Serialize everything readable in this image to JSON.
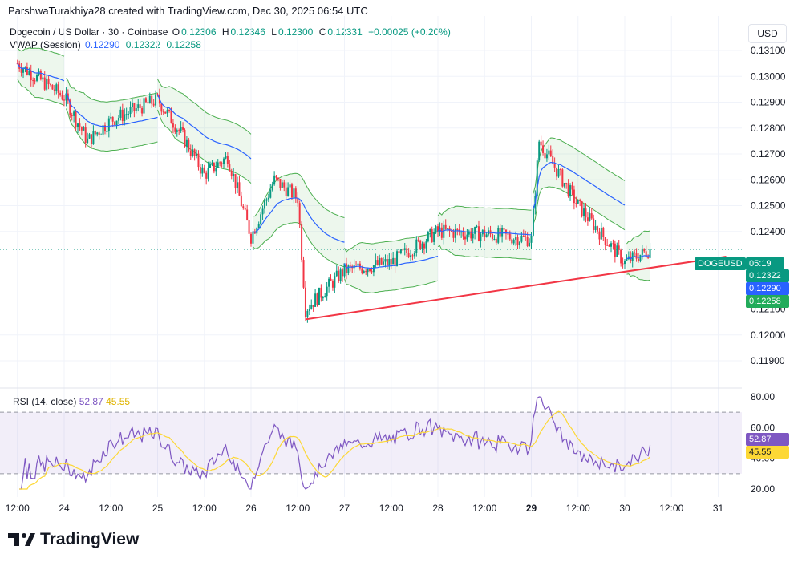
{
  "header": {
    "text": "ParshwaTurakhiya28 created with TradingView.com, Dec 30, 2025 06:54 UTC"
  },
  "symbol": {
    "title": "Dogecoin / US Dollar · 30 · Coinbase",
    "o_label": "O",
    "o": "0.12306",
    "h_label": "H",
    "h": "0.12346",
    "l_label": "L",
    "l": "0.12300",
    "c_label": "C",
    "c": "0.12331",
    "change": "+0.00025 (+0.20%)"
  },
  "vwap": {
    "label": "VWAP (Session)",
    "v1": "0.12290",
    "v2": "0.12322",
    "v3": "0.12258"
  },
  "currency": "USD",
  "price_tags": {
    "ticker": "DOGEUSD",
    "countdown": "05:19",
    "upper": "0.12322",
    "vwap": "0.12290",
    "lower": "0.12258"
  },
  "rsi": {
    "label": "RSI (14, close)",
    "value": "52.87",
    "ma": "45.55",
    "tag_value": "52.87",
    "tag_ma": "45.55"
  },
  "brand": "TradingView",
  "colors": {
    "up": "#089981",
    "down": "#f23645",
    "vwap": "#2962ff",
    "band": "#4caf50",
    "trendline": "#f23645",
    "rsi": "#7e57c2",
    "rsi_ma": "#fdd835"
  },
  "chart_data": [
    {
      "type": "candlestick",
      "title": "Dogecoin / US Dollar · 30 · Coinbase",
      "ylim": [
        0.1188,
        0.1313
      ],
      "yticks": [
        "0.13100",
        "0.13000",
        "0.12900",
        "0.12800",
        "0.12700",
        "0.12600",
        "0.12500",
        "0.12400",
        "0.12100",
        "0.12000",
        "0.11900"
      ],
      "xticks": [
        "12:00",
        "24",
        "12:00",
        "25",
        "12:00",
        "26",
        "12:00",
        "27",
        "12:00",
        "28",
        "12:00",
        "29",
        "12:00",
        "30",
        "12:00",
        "31"
      ],
      "price_approx": [
        {
          "x": "Dec 23 12:00",
          "y": 0.1305
        },
        {
          "x": "Dec 24 00:00",
          "y": 0.1292
        },
        {
          "x": "Dec 24 06:00",
          "y": 0.1275
        },
        {
          "x": "Dec 24 12:00",
          "y": 0.1283
        },
        {
          "x": "Dec 25 00:00",
          "y": 0.1291
        },
        {
          "x": "Dec 25 06:00",
          "y": 0.1278
        },
        {
          "x": "Dec 25 12:00",
          "y": 0.1262
        },
        {
          "x": "Dec 25 18:00",
          "y": 0.1269
        },
        {
          "x": "Dec 26 00:00",
          "y": 0.1238
        },
        {
          "x": "Dec 26 06:00",
          "y": 0.126
        },
        {
          "x": "Dec 26 12:00",
          "y": 0.1253
        },
        {
          "x": "Dec 26 14:00",
          "y": 0.121
        },
        {
          "x": "Dec 27 00:00",
          "y": 0.1225
        },
        {
          "x": "Dec 27 12:00",
          "y": 0.1228
        },
        {
          "x": "Dec 28 00:00",
          "y": 0.124
        },
        {
          "x": "Dec 28 12:00",
          "y": 0.1239
        },
        {
          "x": "Dec 29 00:00",
          "y": 0.1237
        },
        {
          "x": "Dec 29 02:00",
          "y": 0.1275
        },
        {
          "x": "Dec 29 12:00",
          "y": 0.125
        },
        {
          "x": "Dec 30 00:00",
          "y": 0.1228
        },
        {
          "x": "Dec 30 06:30",
          "y": 0.1233
        }
      ],
      "series": [
        {
          "name": "VWAP (Session)",
          "last": 0.1229
        },
        {
          "name": "upper band",
          "last": 0.12322
        },
        {
          "name": "lower band",
          "last": 0.12258
        }
      ],
      "trendline": {
        "from": {
          "x": "Dec 26 14:00",
          "y": 0.1206
        },
        "to": {
          "x": "Dec 31 00:00",
          "y": 0.123
        }
      },
      "current_price": 0.12331
    },
    {
      "type": "line",
      "title": "RSI (14, close)",
      "ylim": [
        15,
        82
      ],
      "yticks": [
        "80.00",
        "60.00",
        "40.00",
        "20.00"
      ],
      "bands": [
        30,
        70
      ],
      "series": [
        {
          "name": "RSI",
          "last": 52.87
        },
        {
          "name": "RSI MA",
          "last": 45.55
        }
      ]
    }
  ]
}
